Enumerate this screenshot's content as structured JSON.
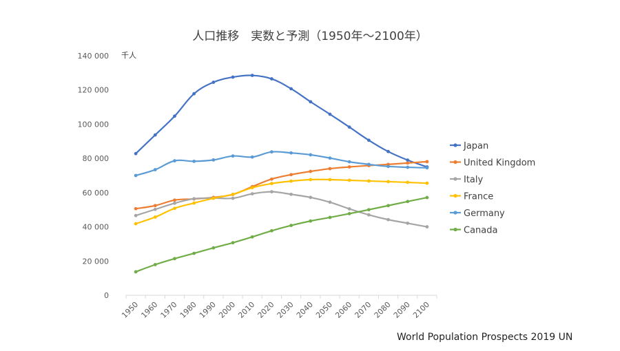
{
  "chart_data": {
    "type": "line",
    "title": "人口推移　実数と予測（1950年～2100年）",
    "ylabel": "千人",
    "xlabel": "",
    "x": [
      "1950",
      "1960",
      "1970",
      "1980",
      "1990",
      "2000",
      "2010",
      "2020",
      "2030",
      "2040",
      "2050",
      "2060",
      "2070",
      "2080",
      "2090",
      "2100"
    ],
    "ylim": [
      0,
      140000
    ],
    "yticks": [
      0,
      20000,
      40000,
      60000,
      80000,
      100000,
      120000,
      140000
    ],
    "ytick_labels": [
      "0",
      "20 000",
      "40 000",
      "60 000",
      "80 000",
      "100 000",
      "120 000",
      "140 000"
    ],
    "grid": false,
    "legend_position": "right",
    "series": [
      {
        "name": "Japan",
        "color": "#4472C4",
        "values": [
          82800,
          93700,
          104700,
          117800,
          124500,
          127500,
          128500,
          126500,
          120700,
          113100,
          105800,
          98300,
          90600,
          84000,
          79000,
          75000
        ]
      },
      {
        "name": "United Kingdom",
        "color": "#ED7D31",
        "values": [
          50600,
          52400,
          55600,
          56300,
          57200,
          58900,
          63500,
          67900,
          70500,
          72400,
          74000,
          75000,
          75800,
          76500,
          77300,
          78100
        ]
      },
      {
        "name": "Italy",
        "color": "#A5A5A5",
        "values": [
          46600,
          50200,
          53800,
          56400,
          56800,
          56700,
          59300,
          60500,
          59000,
          57200,
          54400,
          50500,
          47000,
          44200,
          42100,
          40000
        ]
      },
      {
        "name": "France",
        "color": "#FFC000",
        "values": [
          41800,
          45700,
          50800,
          53900,
          56700,
          59000,
          62900,
          65300,
          66700,
          67600,
          67600,
          67200,
          66800,
          66400,
          66000,
          65500
        ]
      },
      {
        "name": "Germany",
        "color": "#5B9BD5",
        "values": [
          70000,
          73400,
          78600,
          78300,
          79100,
          81400,
          80800,
          83800,
          83200,
          82100,
          80200,
          78000,
          76500,
          75300,
          74800,
          74500
        ]
      },
      {
        "name": "Canada",
        "color": "#70AD47",
        "values": [
          13700,
          17900,
          21400,
          24500,
          27700,
          30700,
          34100,
          37700,
          40800,
          43400,
          45500,
          47700,
          50000,
          52400,
          54800,
          57100
        ]
      }
    ]
  },
  "source_note": "World Population Prospects 2019 UN"
}
